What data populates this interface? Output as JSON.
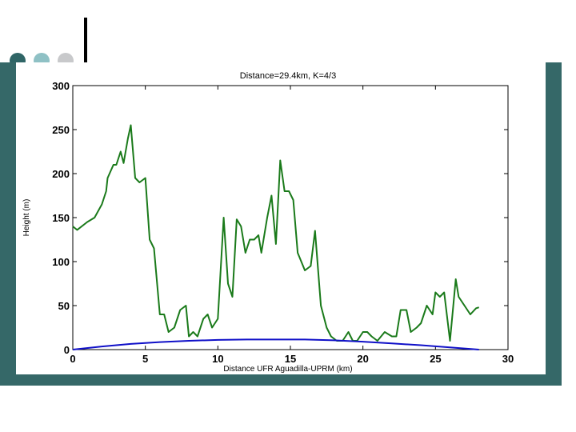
{
  "slide": {
    "dots": [
      {
        "name": "dot-dark",
        "color": "#2f6566"
      },
      {
        "name": "dot-teal",
        "color": "#8fc1c5"
      },
      {
        "name": "dot-gray",
        "color": "#c8c9cb"
      }
    ],
    "band_color": "#356868",
    "plot_bg": "#ffffff"
  },
  "chart_data": {
    "type": "line",
    "title": "Distance=29.4km, K=4/3",
    "xlabel": "Distance UFR Aguadilla-UPRM (km)",
    "ylabel": "Height (m)",
    "xlim": [
      0,
      30
    ],
    "ylim": [
      0,
      300
    ],
    "xticks": [
      0,
      5,
      10,
      15,
      20,
      25,
      30
    ],
    "yticks": [
      0,
      50,
      100,
      150,
      200,
      250,
      300
    ],
    "grid": false,
    "series": [
      {
        "name": "",
        "color": "#1a7a1a",
        "x": [
          0,
          0.3,
          1,
          1.5,
          2,
          2.3,
          2.4,
          2.8,
          3,
          3.3,
          3.5,
          3.8,
          4,
          4.3,
          4.6,
          5,
          5.3,
          5.6,
          6,
          6.3,
          6.6,
          7,
          7.4,
          7.8,
          8,
          8.3,
          8.6,
          9,
          9.3,
          9.6,
          10,
          10.4,
          10.7,
          11,
          11.3,
          11.6,
          11.9,
          12.2,
          12.5,
          12.8,
          13,
          13.4,
          13.7,
          14,
          14.3,
          14.6,
          14.9,
          15.2,
          15.5,
          16,
          16.4,
          16.7,
          17.1,
          17.5,
          17.8,
          18.2,
          18.6,
          19,
          19.3,
          19.6,
          20,
          20.3,
          20.6,
          21,
          21.5,
          22,
          22.3,
          22.6,
          23,
          23.3,
          23.7,
          24,
          24.4,
          24.8,
          25,
          25.3,
          25.6,
          26,
          26.4,
          26.6,
          27,
          27.4,
          27.8,
          28
        ],
        "y": [
          140,
          136,
          145,
          150,
          165,
          180,
          195,
          210,
          210,
          225,
          212,
          240,
          255,
          195,
          190,
          195,
          125,
          115,
          40,
          40,
          20,
          25,
          45,
          50,
          15,
          20,
          15,
          35,
          40,
          25,
          35,
          150,
          75,
          60,
          148,
          140,
          110,
          125,
          125,
          130,
          110,
          150,
          175,
          120,
          215,
          180,
          180,
          170,
          110,
          90,
          95,
          135,
          50,
          25,
          15,
          10,
          10,
          20,
          10,
          10,
          20,
          20,
          15,
          10,
          20,
          15,
          15,
          45,
          45,
          20,
          25,
          30,
          50,
          40,
          65,
          60,
          65,
          10,
          80,
          60,
          50,
          40,
          47,
          48
        ]
      },
      {
        "name": "",
        "color": "#1010c8",
        "x": [
          0,
          2,
          4,
          6,
          8,
          10,
          12,
          14,
          16,
          18,
          20,
          22,
          24,
          26,
          28
        ],
        "y": [
          0,
          3.5,
          6.5,
          8.5,
          10,
          11,
          11.5,
          11.5,
          11.5,
          10.5,
          9,
          7,
          5,
          2.5,
          0
        ]
      }
    ]
  }
}
